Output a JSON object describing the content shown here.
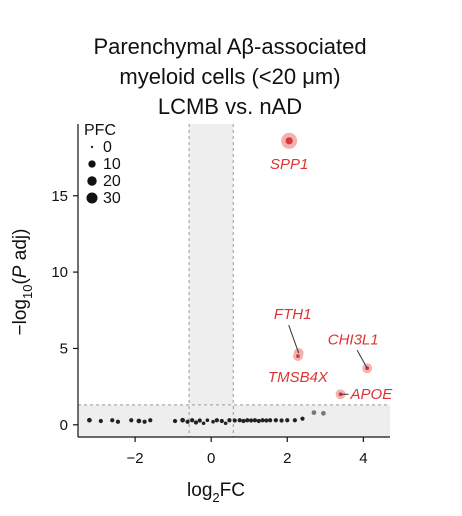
{
  "title_lines": [
    "Parenchymal Aβ-associated",
    "myeloid cells (<20 μm)",
    "LCMB vs. nAD"
  ],
  "chart_data": {
    "type": "scatter",
    "title": "Parenchymal Aβ-associated myeloid cells (<20 μm) LCMB vs. nAD",
    "xlabel_base": "log",
    "xlabel_sub": "2",
    "xlabel_rest": "FC",
    "ylabel_pre": "−log",
    "ylabel_sub": "10",
    "ylabel_open": "(",
    "ylabel_var": "P",
    "ylabel_rest": " adj)",
    "xlim": [
      -3.5,
      4.7
    ],
    "ylim": [
      -0.8,
      19.7
    ],
    "x_ticks": [
      -2,
      0,
      2,
      4
    ],
    "x_tick_labels": [
      "−2",
      "0",
      "2",
      "4"
    ],
    "y_ticks": [
      0,
      5,
      10,
      15
    ],
    "y_tick_labels": [
      "0",
      "5",
      "10",
      "15"
    ],
    "fc_threshold": [
      -0.58,
      0.58
    ],
    "p_threshold": 1.3,
    "colors": {
      "significant": "#d93a3a",
      "nonsignificant": "#222222",
      "shade": "#eeeeee",
      "threshold_line": "#999999"
    },
    "legend": {
      "title": "PFC",
      "entries": [
        {
          "label": "0",
          "size": 0
        },
        {
          "label": "10",
          "size": 10
        },
        {
          "label": "20",
          "size": 20
        },
        {
          "label": "30",
          "size": 30
        }
      ],
      "placement": "top-left"
    },
    "labeled_points": [
      {
        "gene": "SPP1",
        "x": 2.05,
        "y": 18.6,
        "size": 30
      },
      {
        "gene": "FTH1",
        "x": 2.3,
        "y": 4.7,
        "size": 5
      },
      {
        "gene": "TMSB4X",
        "x": 2.28,
        "y": 4.5,
        "size": 5
      },
      {
        "gene": "CHI3L1",
        "x": 4.1,
        "y": 3.7,
        "size": 5
      },
      {
        "gene": "APOE",
        "x": 3.4,
        "y": 2.0,
        "size": 5
      }
    ],
    "points": [
      {
        "x": -3.2,
        "y": 0.3,
        "size": 3
      },
      {
        "x": -2.9,
        "y": 0.25,
        "size": 2
      },
      {
        "x": -2.6,
        "y": 0.3,
        "size": 2
      },
      {
        "x": -2.45,
        "y": 0.2,
        "size": 2
      },
      {
        "x": -2.1,
        "y": 0.3,
        "size": 2
      },
      {
        "x": -1.9,
        "y": 0.25,
        "size": 3
      },
      {
        "x": -1.75,
        "y": 0.2,
        "size": 2
      },
      {
        "x": -1.6,
        "y": 0.3,
        "size": 2
      },
      {
        "x": -0.95,
        "y": 0.25,
        "size": 2
      },
      {
        "x": -0.75,
        "y": 0.3,
        "size": 3
      },
      {
        "x": -0.62,
        "y": 0.2,
        "size": 2
      },
      {
        "x": -0.5,
        "y": 0.3,
        "size": 2
      },
      {
        "x": -0.4,
        "y": 0.15,
        "size": 2
      },
      {
        "x": -0.3,
        "y": 0.28,
        "size": 2
      },
      {
        "x": -0.2,
        "y": 0.1,
        "size": 1
      },
      {
        "x": -0.1,
        "y": 0.3,
        "size": 1
      },
      {
        "x": 0.05,
        "y": 0.2,
        "size": 1
      },
      {
        "x": 0.15,
        "y": 0.3,
        "size": 2
      },
      {
        "x": 0.28,
        "y": 0.25,
        "size": 2
      },
      {
        "x": 0.38,
        "y": 0.1,
        "size": 1
      },
      {
        "x": 0.48,
        "y": 0.3,
        "size": 2
      },
      {
        "x": 0.62,
        "y": 0.28,
        "size": 2
      },
      {
        "x": 0.75,
        "y": 0.3,
        "size": 2
      },
      {
        "x": 0.85,
        "y": 0.25,
        "size": 2
      },
      {
        "x": 0.95,
        "y": 0.3,
        "size": 2
      },
      {
        "x": 1.05,
        "y": 0.28,
        "size": 2
      },
      {
        "x": 1.15,
        "y": 0.3,
        "size": 2
      },
      {
        "x": 1.25,
        "y": 0.25,
        "size": 2
      },
      {
        "x": 1.35,
        "y": 0.3,
        "size": 2
      },
      {
        "x": 1.45,
        "y": 0.28,
        "size": 2
      },
      {
        "x": 1.55,
        "y": 0.3,
        "size": 2
      },
      {
        "x": 1.7,
        "y": 0.3,
        "size": 2
      },
      {
        "x": 1.85,
        "y": 0.28,
        "size": 2
      },
      {
        "x": 2.0,
        "y": 0.3,
        "size": 2
      },
      {
        "x": 2.2,
        "y": 0.3,
        "size": 2
      },
      {
        "x": 2.4,
        "y": 0.4,
        "size": 2
      },
      {
        "x": 2.7,
        "y": 0.8,
        "size": 3
      },
      {
        "x": 2.95,
        "y": 0.75,
        "size": 3
      }
    ]
  }
}
